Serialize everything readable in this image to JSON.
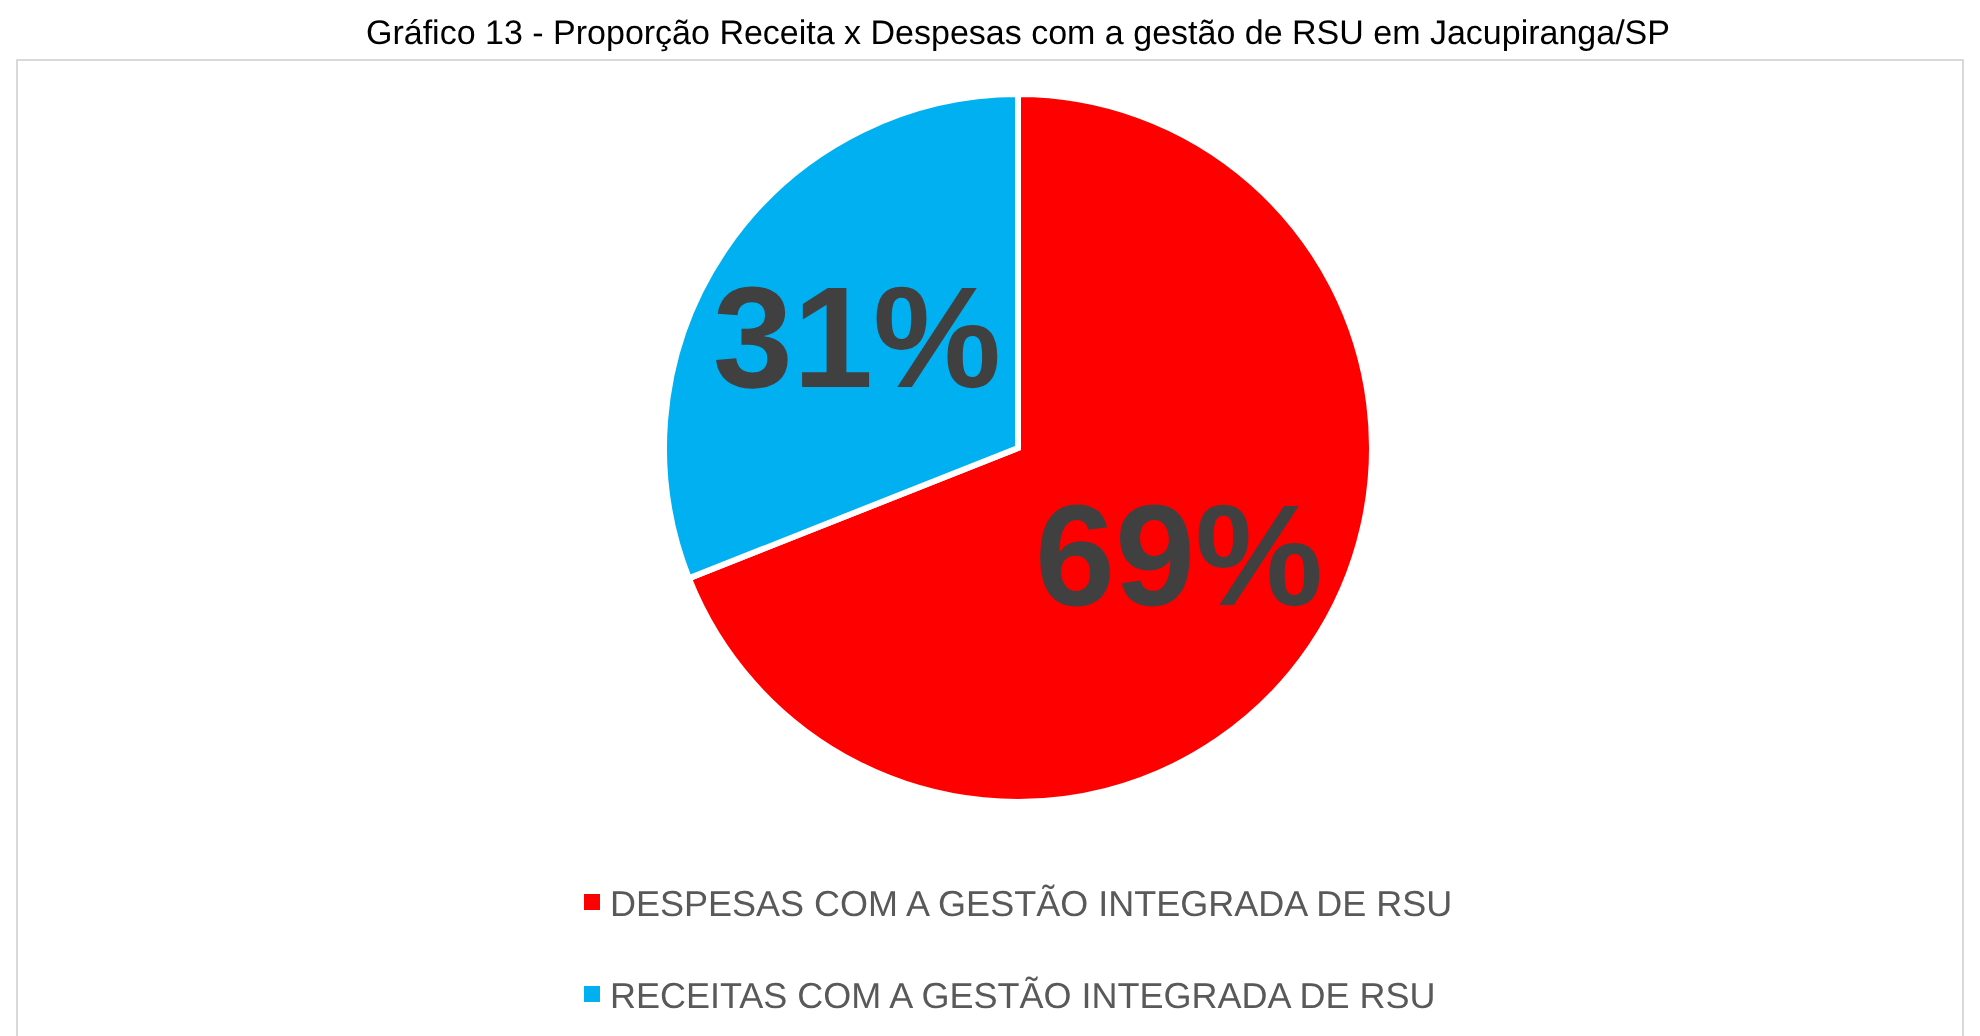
{
  "chart_data": {
    "type": "pie",
    "title": "Gráfico 13 - Proporção Receita x Despesas com a gestão de RSU em Jacupiranga/SP",
    "categories": [
      "DESPESAS COM A GESTÃO INTEGRADA DE RSU",
      "RECEITAS COM A GESTÃO INTEGRADA DE RSU"
    ],
    "values": [
      69,
      31
    ],
    "colors": [
      "#ff0000",
      "#00b0f0"
    ],
    "value_labels": [
      "69%",
      "31%"
    ],
    "legend": "bottom"
  }
}
